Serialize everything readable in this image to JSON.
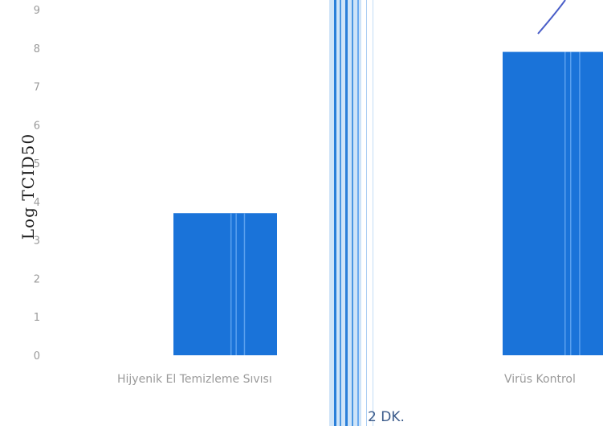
{
  "chart_data": {
    "type": "bar",
    "ylabel": "Log TCID50",
    "categories": [
      "Hijyenik El Temizleme Sıvısı",
      "Virüs Kontrol"
    ],
    "values": [
      3.7,
      7.9
    ],
    "ylim": [
      0,
      9
    ],
    "yticks": [
      0,
      1,
      2,
      3,
      4,
      5,
      6,
      7,
      8,
      9
    ],
    "grid": false,
    "colors": {
      "bar": "#1a73d9",
      "bar_stripe": "#5aa0ee"
    },
    "annotation": "2 DK."
  }
}
